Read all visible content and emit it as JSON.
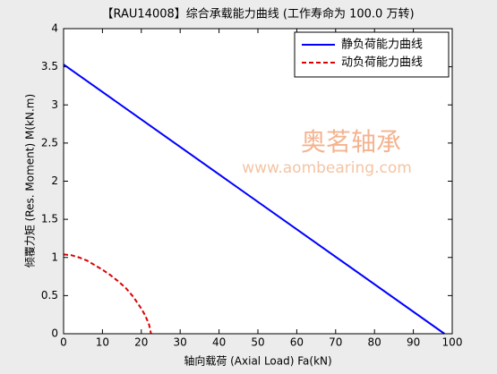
{
  "chart_data": {
    "type": "line",
    "title": "【RAU14008】综合承载能力曲线 (工作寿命为 100.0 万转)",
    "x_label": "轴向载荷 (Axial Load) Fa(kN)",
    "y_label": "倾覆力矩 (Res. Moment) M(kN.m)",
    "annotations": [
      "奥茗轴承",
      "www.aombearing.com"
    ],
    "xlim": [
      0,
      100
    ],
    "xticks": [
      0,
      10,
      20,
      30,
      40,
      50,
      60,
      70,
      80,
      90,
      100
    ],
    "ylim": [
      0,
      4
    ],
    "yticks": [
      0,
      0.5,
      1,
      1.5,
      2,
      2.5,
      3,
      3.5,
      4
    ],
    "grid": false,
    "legend": "northeast",
    "series": [
      {
        "name": "静负荷能力曲线",
        "color": "#0000ff",
        "dash": "solid",
        "x": [
          0,
          98
        ],
        "values": [
          3.53,
          0
        ]
      },
      {
        "name": "动负荷能力曲线",
        "color": "#e00000",
        "dash": "dashed",
        "x": [
          0,
          2,
          4,
          6,
          8,
          10,
          12,
          14,
          16,
          18,
          20,
          21,
          22,
          22.5
        ],
        "values": [
          1.04,
          1.03,
          1.0,
          0.96,
          0.9,
          0.84,
          0.77,
          0.69,
          0.6,
          0.48,
          0.33,
          0.24,
          0.12,
          0
        ]
      }
    ]
  }
}
